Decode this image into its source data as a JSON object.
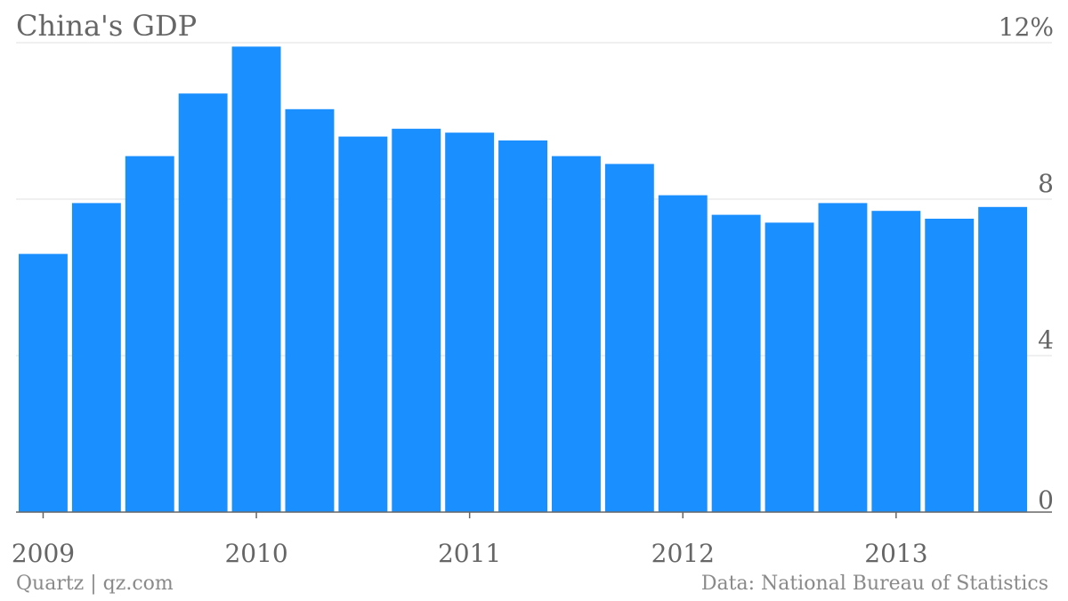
{
  "chart_data": {
    "type": "bar",
    "title": "China's GDP",
    "source": "Data: National Bureau of Statistics",
    "credit": "Quartz | qz.com",
    "ylim": [
      0,
      12
    ],
    "yticks": [
      "0",
      "4",
      "8",
      "12%"
    ],
    "xticks": [
      "2009",
      "2010",
      "2011",
      "2012",
      "2013"
    ],
    "bar_color": "#1a8fff",
    "grid": true,
    "categories": [
      "2009 Q1",
      "2009 Q2",
      "2009 Q3",
      "2009 Q4",
      "2010 Q1",
      "2010 Q2",
      "2010 Q3",
      "2010 Q4",
      "2011 Q1",
      "2011 Q2",
      "2011 Q3",
      "2011 Q4",
      "2012 Q1",
      "2012 Q2",
      "2012 Q3",
      "2012 Q4",
      "2013 Q1",
      "2013 Q2",
      "2013 Q3"
    ],
    "values": [
      6.6,
      7.9,
      9.1,
      10.7,
      11.9,
      10.3,
      9.6,
      9.8,
      9.7,
      9.5,
      9.1,
      8.9,
      8.1,
      7.6,
      7.4,
      7.9,
      7.7,
      7.5,
      7.8
    ]
  }
}
